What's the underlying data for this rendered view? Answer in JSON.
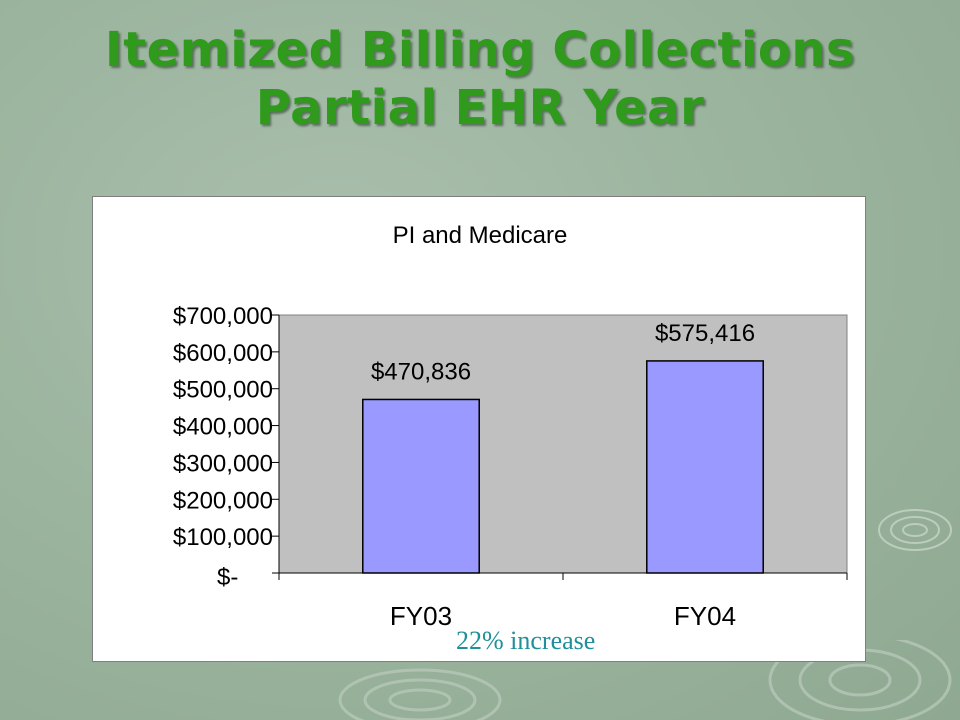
{
  "slide": {
    "title_line_1": "Itemized Billing Collections",
    "title_line_2": "Partial EHR Year",
    "annotation": "22% increase"
  },
  "colors": {
    "title": "#2f9a1c",
    "background": "#9cb59f",
    "plot_area": "#c0c0c0",
    "bar_fill": "#9999ff",
    "annotation": "#1f8f9a"
  },
  "chart_data": {
    "type": "bar",
    "title": "PI and Medicare",
    "categories": [
      "FY03",
      "FY04"
    ],
    "values": [
      470836,
      575416
    ],
    "data_labels": [
      "$470,836",
      "$575,416"
    ],
    "ylim": [
      0,
      700000
    ],
    "y_ticks": [
      0,
      100000,
      200000,
      300000,
      400000,
      500000,
      600000,
      700000
    ],
    "y_tick_labels": [
      "$-",
      "$100,000",
      "$200,000",
      "$300,000",
      "$400,000",
      "$500,000",
      "$600,000",
      "$700,000"
    ],
    "xlabel": "",
    "ylabel": "",
    "grid": false,
    "legend": "none"
  }
}
